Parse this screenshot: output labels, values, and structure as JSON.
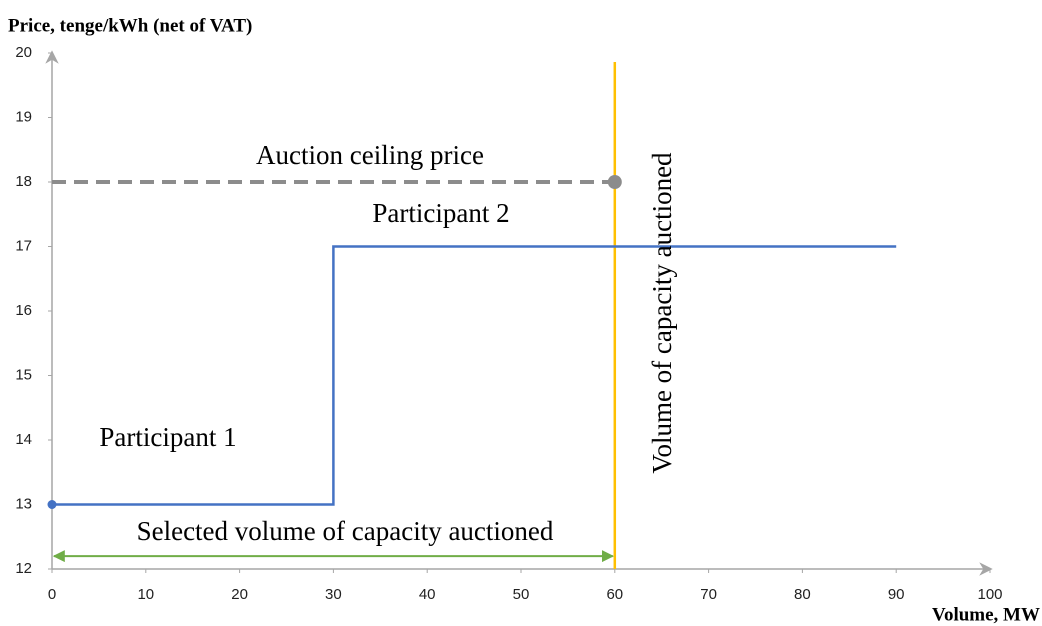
{
  "chart_data": {
    "type": "line",
    "ylabel": "Price, tenge/kWh (net of VAT)",
    "xlabel": "Volume, MW",
    "xlim": [
      0,
      100
    ],
    "xticks": [
      0,
      10,
      20,
      30,
      40,
      50,
      60,
      70,
      80,
      90,
      100
    ],
    "ylim": [
      12,
      20
    ],
    "yticks": [
      12,
      13,
      14,
      15,
      16,
      17,
      18,
      19,
      20
    ],
    "series": [
      {
        "color": "#4472c4",
        "x": [
          0,
          30,
          30,
          90
        ],
        "values": [
          13,
          13,
          17,
          17
        ]
      },
      {
        "color": "#8c8c8c",
        "dashed": true,
        "x": [
          0,
          60
        ],
        "values": [
          18,
          18
        ]
      }
    ],
    "vlines": [
      {
        "x": 60,
        "color": "#ffc000"
      }
    ],
    "arrows": [
      {
        "x": [
          0,
          60
        ],
        "y": 12.2,
        "color": "#70ad47"
      }
    ],
    "annotations": [
      "Auction ceiling price",
      "Participant 2",
      "Participant 1",
      "Selected volume of capacity auctioned",
      "Volume of capacity auctioned"
    ]
  }
}
